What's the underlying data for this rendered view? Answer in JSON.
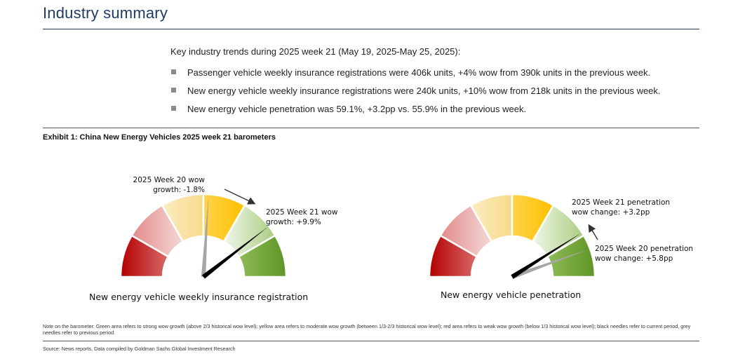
{
  "header": {
    "title": "Industry summary"
  },
  "intro": "Key industry trends during 2025 week 21 (May 19, 2025-May 25, 2025):",
  "bullets": [
    "Passenger vehicle weekly insurance registrations were 406k units, +4% wow from 390k units in the previous week.",
    "New energy vehicle weekly insurance registrations were 240k units, +10% wow from 218k units in the previous week.",
    "New energy vehicle penetration was 59.1%, +3.2pp vs. 55.9% in the previous week."
  ],
  "exhibit": {
    "title": "Exhibit 1: China New Energy Vehicles 2025 week 21 barometers"
  },
  "gauges": [
    {
      "title": "New energy vehicle weekly insurance registration",
      "current_annotation": [
        "2025 Week 21 wow",
        "growth: +9.9%"
      ],
      "previous_annotation": [
        "2025 Week 20 wow",
        "growth: -1.8%"
      ],
      "current_needle_fraction": 0.79,
      "previous_needle_fraction": 0.52
    },
    {
      "title": "New energy vehicle penetration",
      "current_annotation": [
        "2025 Week 21 penetration",
        "wow change: +3.2pp"
      ],
      "previous_annotation": [
        "2025 Week 20 penetration",
        "wow change: +5.8pp"
      ],
      "current_needle_fraction": 0.82,
      "previous_needle_fraction": 0.89
    }
  ],
  "colors": {
    "title": "#1f3b63",
    "red": "#c00000",
    "yellow": "#ffc000",
    "green": "#70a030",
    "current_needle": "#000000",
    "previous_needle": "#a6a6a6"
  },
  "note": "Note on the barometer: Green area refers to strong wow growth (above 2/3 historical wow level); yellow area refers to moderate wow growth (between 1/3-2/3 historical wow level); red area refers to weak wow growth (below 1/3 historical wow level); black needles refer to current period, grey needles refer to previous period.",
  "source": "Source: News reports, Data compiled by Goldman Sachs Global Investment Research"
}
